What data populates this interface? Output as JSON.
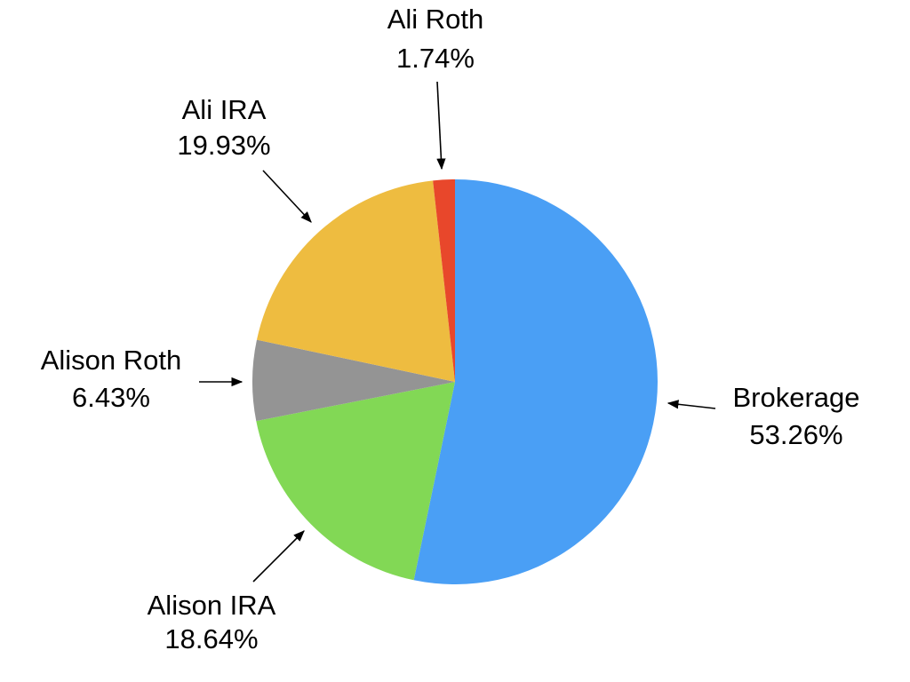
{
  "chart_data": {
    "type": "pie",
    "categories": [
      "Brokerage",
      "Alison IRA",
      "Alison Roth",
      "Ali IRA",
      "Ali Roth"
    ],
    "values": [
      53.26,
      18.64,
      6.43,
      19.93,
      1.74
    ],
    "value_labels": [
      "53.26%",
      "18.64%",
      "6.43%",
      "19.93%",
      "1.74%"
    ],
    "colors": [
      "#4a9ff5",
      "#82d855",
      "#949494",
      "#eebc40",
      "#e8472b"
    ]
  }
}
